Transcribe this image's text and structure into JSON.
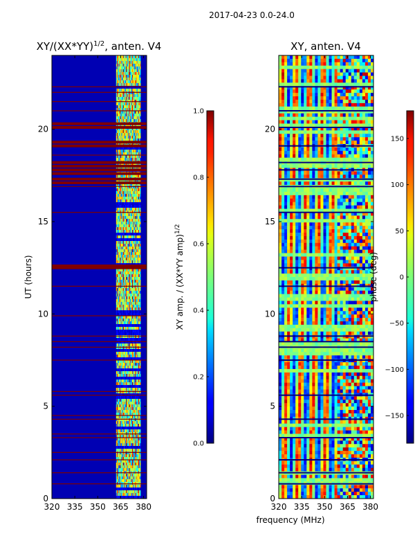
{
  "figure": {
    "suptitle": "2017-04-23 0.0-24.0"
  },
  "chart_data": [
    {
      "type": "heatmap",
      "title": "XY/(XX*YY)¹ᐟ², anten. V4",
      "title_main": "XY/(XX*YY)",
      "title_exp": "1/2",
      "title_tail": ", anten. V4",
      "xlabel": "",
      "ylabel": "UT (hours)",
      "xlim": [
        320,
        382
      ],
      "ylim": [
        0,
        24
      ],
      "xticks": [
        "320",
        "335",
        "350",
        "365",
        "380"
      ],
      "xtick_values": [
        320,
        335,
        350,
        365,
        380
      ],
      "yticks": [
        "0",
        "5",
        "10",
        "15",
        "20"
      ],
      "ytick_values": [
        0,
        5,
        10,
        15,
        20
      ],
      "colorbar": {
        "label_main": "XY amp. / (XX*YY amp)",
        "label_exp": "1/2",
        "range": [
          0.0,
          1.0
        ],
        "ticks": [
          "0.0",
          "0.2",
          "0.4",
          "0.6",
          "0.8",
          "1.0"
        ],
        "tick_values": [
          0.0,
          0.2,
          0.4,
          0.6,
          0.8,
          1.0
        ],
        "colormap": "jet"
      },
      "background_value": 0.05,
      "active_band_mhz": [
        362,
        378
      ],
      "flagged_hours": [
        0.8,
        1.4,
        2.1,
        2.5,
        3.3,
        3.5,
        4.3,
        4.5,
        5.6,
        5.8,
        7.5,
        8.2,
        8.5,
        8.8,
        9.9,
        11.5,
        12.5,
        12.6,
        15.5,
        16.9,
        17.1,
        17.3,
        17.6,
        17.8,
        18.0,
        18.2,
        18.6,
        19.1,
        19.3,
        20.1,
        20.3,
        21.0,
        21.5,
        22.0,
        22.3
      ]
    },
    {
      "type": "heatmap",
      "title": "XY, anten. V4",
      "xlabel": "frequency (MHz)",
      "ylabel": "",
      "xlim": [
        320,
        382
      ],
      "ylim": [
        0,
        24
      ],
      "xticks": [
        "320",
        "335",
        "350",
        "365",
        "380"
      ],
      "xtick_values": [
        320,
        335,
        350,
        365,
        380
      ],
      "yticks": [
        "0",
        "5",
        "10",
        "15",
        "20"
      ],
      "ytick_values": [
        0,
        5,
        10,
        15,
        20
      ],
      "colorbar": {
        "label": "phase (deg)",
        "range": [
          -180,
          180
        ],
        "ticks": [
          "−150",
          "−100",
          "−50",
          "0",
          "50",
          "100",
          "150"
        ],
        "tick_values": [
          -150,
          -100,
          -50,
          0,
          50,
          100,
          150
        ],
        "colormap": "jet"
      },
      "flagged_hours": [
        0.8,
        1.4,
        2.1,
        3.3,
        4.3,
        5.6,
        7.5,
        8.2,
        8.5,
        8.8,
        11.5,
        12.5,
        15.5,
        16.9,
        17.3,
        17.8,
        18.2,
        19.1,
        20.1,
        21.0,
        22.3
      ]
    }
  ]
}
